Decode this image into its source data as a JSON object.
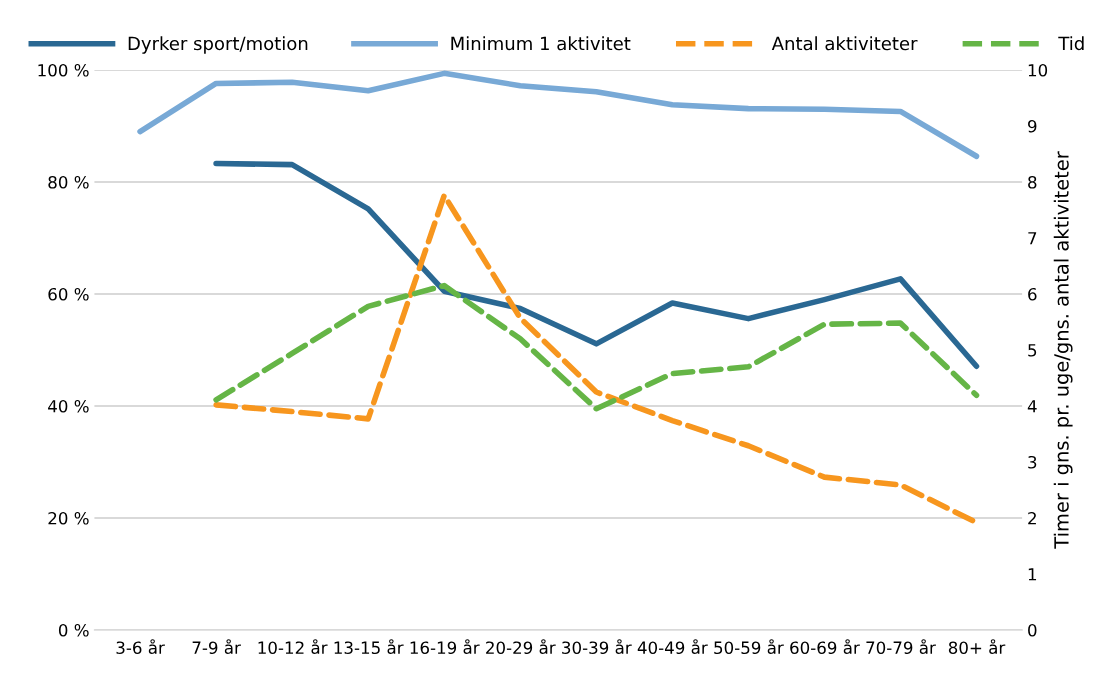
{
  "chart_data": {
    "type": "line",
    "categories": [
      "3-6 år",
      "7-9 år",
      "10-12 år",
      "13-15 år",
      "16-19 år",
      "20-29 år",
      "30-39 år",
      "40-49 år",
      "50-59 år",
      "60-69 år",
      "70-79 år",
      "80+ år"
    ],
    "y2label": "Timer i gns. pr. uge/gns. antal aktiviteter",
    "series": [
      {
        "name": "Dyrker sport/motion",
        "color": "#2a6893",
        "line_style": "solid",
        "values": [
          null,
          83.3,
          83.1,
          75.2,
          60.5,
          57.4,
          51.1,
          58.4,
          55.6,
          59.0,
          62.7,
          47.1
        ]
      },
      {
        "name": "Minimum 1 aktivitet",
        "color": "#78a9d6",
        "line_style": "solid",
        "values": [
          89.0,
          97.6,
          97.8,
          96.3,
          99.4,
          97.2,
          96.1,
          93.8,
          93.1,
          93.0,
          92.6,
          84.6
        ]
      },
      {
        "name": "Antal aktiviteter",
        "color": "#f7961e",
        "line_style": "dashed",
        "axis": "y2",
        "values": [
          null,
          4.02,
          3.9,
          3.77,
          7.76,
          5.57,
          4.25,
          3.74,
          3.29,
          2.73,
          2.59,
          1.92
        ]
      },
      {
        "name": "Tid",
        "color": "#65b546",
        "line_style": "dashed",
        "axis": "y2",
        "values": [
          null,
          4.11,
          4.94,
          5.78,
          6.15,
          5.2,
          3.95,
          4.58,
          4.7,
          5.46,
          5.48,
          4.19
        ]
      }
    ],
    "ylim": [
      0,
      100
    ],
    "yticks": [
      {
        "value": 0,
        "label": "0 %"
      },
      {
        "value": 20,
        "label": "20 %"
      },
      {
        "value": 40,
        "label": "40 %"
      },
      {
        "value": 60,
        "label": "60 %"
      },
      {
        "value": 80,
        "label": "80 %"
      },
      {
        "value": 100,
        "label": "100 %"
      }
    ],
    "y2lim": [
      0,
      10
    ],
    "y2ticks": [
      0,
      1,
      2,
      3,
      4,
      5,
      6,
      7,
      8,
      9,
      10
    ],
    "grid": "y",
    "legend": "top",
    "marker": "none"
  }
}
